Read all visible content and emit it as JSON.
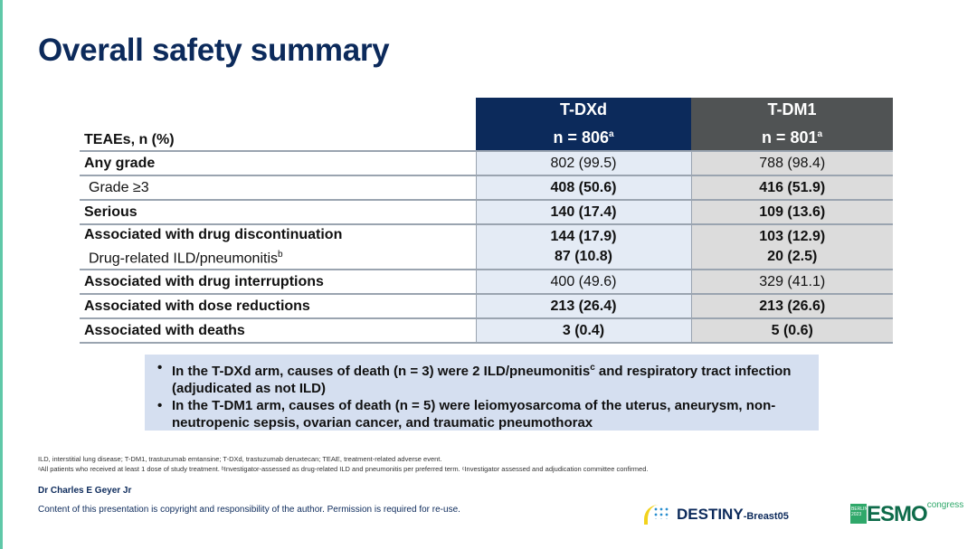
{
  "title": "Overall safety summary",
  "table": {
    "row_header": "TEAEs, n (%)",
    "columns": [
      {
        "name": "T-DXd",
        "n": "n = 806",
        "sup": "a",
        "color": "#0c2a5b"
      },
      {
        "name": "T-DM1",
        "n": "n = 801",
        "sup": "a",
        "color": "#505354"
      }
    ],
    "rows": [
      {
        "label": "Any grade",
        "v1": "802 (99.5)",
        "v2": "788 (98.4)"
      },
      {
        "label": "Grade ≥3",
        "v1": "408 (50.6)",
        "v2": "416 (51.9)"
      },
      {
        "label": "Serious",
        "v1": "140 (17.4)",
        "v2": "109 (13.6)"
      },
      {
        "label": "Associated with drug discontinuation",
        "v1": "144 (17.9)",
        "v2": "103 (12.9)",
        "sub_label": "Drug-related ILD/pneumonitis",
        "sub_sup": "b",
        "sub_v1": "87 (10.8)",
        "sub_v2": "20 (2.5)"
      },
      {
        "label": "Associated with drug interruptions",
        "v1": "400 (49.6)",
        "v2": "329 (41.1)"
      },
      {
        "label": "Associated with dose reductions",
        "v1": "213 (26.4)",
        "v2": "213 (26.6)"
      },
      {
        "label": "Associated with deaths",
        "v1": "3 (0.4)",
        "v2": "5 (0.6)"
      }
    ]
  },
  "callout": {
    "b1a": "In the T-DXd arm, causes of death (n = 3) were 2 ILD/pneumonitis",
    "b1sup": "c",
    "b1b": " and respiratory tract infection (adjudicated as not ILD)",
    "b2": "In the T-DM1 arm, causes of death (n = 5) were leiomyosarcoma of the uterus, aneurysm, non-neutropenic sepsis, ovarian cancer, and traumatic pneumothorax"
  },
  "footnotes": {
    "abbrev": "ILD, interstitial lung disease; T-DM1, trastuzumab emtansine; T-DXd, trastuzumab deruxtecan; TEAE, treatment-related adverse event.",
    "notes": "ᵃAll patients who received at least 1 dose of study treatment. ᵇInvestigator-assessed as drug-related ILD and pneumonitis per preferred term. ᶜInvestigator assessed and adjudication committee confirmed."
  },
  "author": "Dr Charles E Geyer Jr",
  "copyright": "Content of this presentation is copyright and responsibility of the author. Permission is required for re-use.",
  "logos": {
    "destiny_main": "DESTINY",
    "destiny_sub": "-Breast05",
    "esmo_badge": "BERLIN 2023",
    "esmo": "ESMO",
    "esmo_sub": "congress"
  }
}
